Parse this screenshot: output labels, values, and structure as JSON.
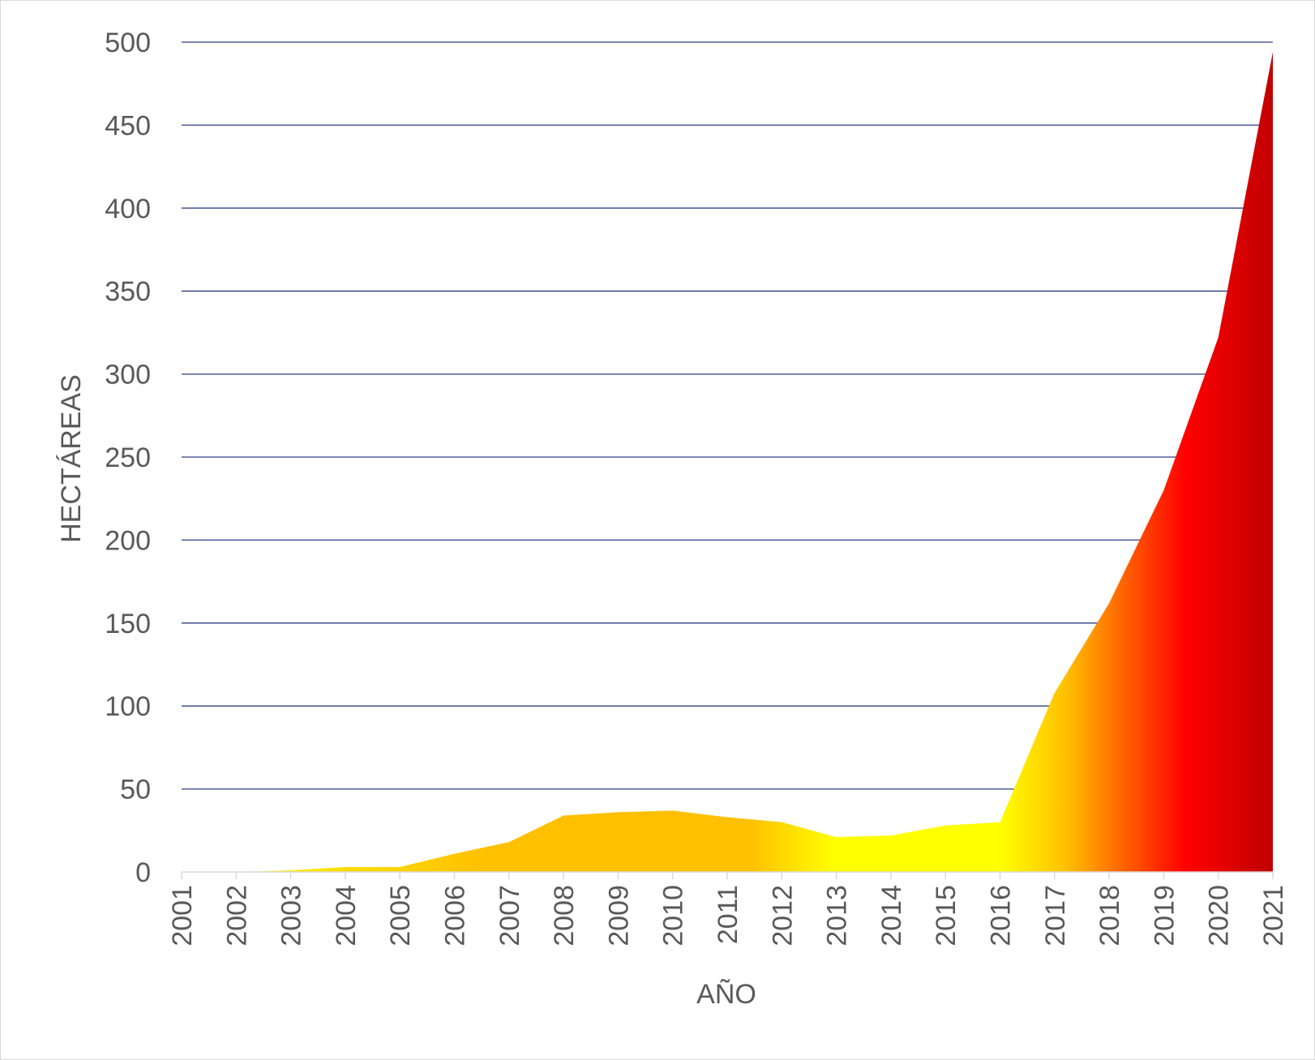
{
  "chart_data": {
    "type": "area",
    "title": "",
    "xlabel": "AÑO",
    "ylabel": "HECTÁREAS",
    "ylim": [
      0,
      500
    ],
    "yticks": [
      0,
      50,
      100,
      150,
      200,
      250,
      300,
      350,
      400,
      450,
      500
    ],
    "grid": true,
    "legend": "none",
    "x": [
      "2001",
      "2002",
      "2003",
      "2004",
      "2005",
      "2006",
      "2007",
      "2008",
      "2009",
      "2010",
      "2011",
      "2012",
      "2013",
      "2014",
      "2015",
      "2016",
      "2017",
      "2018",
      "2019",
      "2020",
      "2021"
    ],
    "series": [
      {
        "values": [
          0,
          0,
          1,
          3,
          3,
          11,
          18,
          34,
          36,
          37,
          33,
          30,
          21,
          22,
          28,
          30,
          108,
          162,
          230,
          322,
          494
        ]
      }
    ],
    "colors": {
      "gridline": "#2f3f86",
      "axis_line": "#d9d9d9",
      "gradient_stops": [
        {
          "offset": "0%",
          "color": "#ffff00"
        },
        {
          "offset": "28%",
          "color": "#ffc000"
        },
        {
          "offset": "52%",
          "color": "#ffc000"
        },
        {
          "offset": "60%",
          "color": "#ffff00"
        },
        {
          "offset": "75%",
          "color": "#ffff00"
        },
        {
          "offset": "81%",
          "color": "#ffc000"
        },
        {
          "offset": "92%",
          "color": "#ff0000"
        },
        {
          "offset": "100%",
          "color": "#c00000"
        }
      ]
    }
  }
}
